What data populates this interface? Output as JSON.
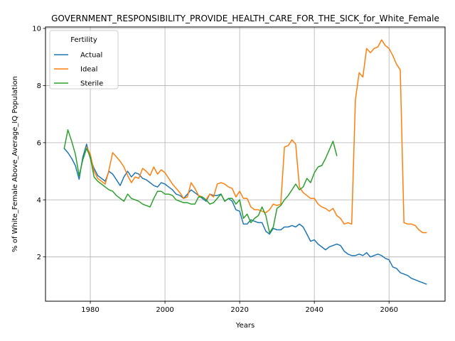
{
  "chart_data": {
    "type": "line",
    "title": "GOVERNMENT_RESPONSIBILITY_PROVIDE_HEALTH_CARE_FOR_THE_SICK_for_White_Female",
    "xlabel": "Years",
    "ylabel": "% of White_Female Above_Average_IQ Population",
    "xlim": [
      1968,
      2075
    ],
    "ylim": [
      0.45,
      10.05
    ],
    "xticks": [
      1980,
      2000,
      2020,
      2040,
      2060
    ],
    "yticks": [
      2,
      4,
      6,
      8,
      10
    ],
    "grid": true,
    "legend": {
      "title": "Fertility",
      "placement": "upper left"
    },
    "series": [
      {
        "name": "Actual",
        "color": "#1f77b4",
        "x": [
          1973,
          1974,
          1975,
          1976,
          1977,
          1978,
          1979,
          1980,
          1981,
          1982,
          1983,
          1984,
          1985,
          1986,
          1987,
          1988,
          1989,
          1990,
          1991,
          1992,
          1993,
          1994,
          1995,
          1996,
          1997,
          1998,
          1999,
          2000,
          2001,
          2002,
          2003,
          2004,
          2005,
          2006,
          2007,
          2008,
          2009,
          2010,
          2011,
          2012,
          2013,
          2014,
          2015,
          2016,
          2017,
          2018,
          2019,
          2020,
          2021,
          2022,
          2023,
          2024,
          2025,
          2026,
          2027,
          2028,
          2029,
          2030,
          2031,
          2032,
          2033,
          2034,
          2035,
          2036,
          2037,
          2038,
          2039,
          2040,
          2041,
          2042,
          2043,
          2044,
          2045,
          2046,
          2047,
          2048,
          2049,
          2050,
          2051,
          2052,
          2053,
          2054,
          2055,
          2056,
          2057,
          2058,
          2059,
          2060,
          2061,
          2062,
          2063,
          2064,
          2065,
          2066,
          2067,
          2068,
          2069,
          2070
        ],
        "values": [
          5.8,
          5.65,
          5.45,
          5.2,
          4.72,
          5.5,
          5.95,
          5.45,
          5.1,
          4.85,
          4.75,
          4.65,
          5.0,
          4.9,
          4.7,
          4.5,
          4.8,
          5.0,
          4.8,
          4.95,
          4.9,
          4.75,
          4.7,
          4.6,
          4.5,
          4.45,
          4.6,
          4.55,
          4.45,
          4.35,
          4.2,
          4.15,
          4.05,
          4.2,
          4.35,
          4.25,
          4.15,
          4.05,
          3.95,
          4.2,
          4.15,
          4.15,
          4.2,
          3.95,
          4.05,
          3.95,
          3.65,
          3.6,
          3.15,
          3.15,
          3.3,
          3.25,
          3.2,
          3.2,
          2.9,
          2.8,
          3.0,
          2.95,
          2.95,
          3.05,
          3.05,
          3.1,
          3.05,
          3.15,
          3.05,
          2.8,
          2.55,
          2.6,
          2.45,
          2.35,
          2.25,
          2.35,
          2.4,
          2.45,
          2.4,
          2.2,
          2.1,
          2.05,
          2.05,
          2.1,
          2.05,
          2.15,
          2.0,
          2.05,
          2.1,
          2.05,
          1.95,
          1.9,
          1.65,
          1.6,
          1.45,
          1.4,
          1.35,
          1.25,
          1.2,
          1.15,
          1.1,
          1.05
        ]
      },
      {
        "name": "Ideal",
        "color": "#ff7f0e",
        "x": [
          1979,
          1980,
          1981,
          1982,
          1983,
          1984,
          1985,
          1986,
          1987,
          1988,
          1989,
          1990,
          1991,
          1992,
          1993,
          1994,
          1995,
          1996,
          1997,
          1998,
          1999,
          2000,
          2001,
          2002,
          2003,
          2004,
          2005,
          2006,
          2007,
          2008,
          2009,
          2010,
          2011,
          2012,
          2013,
          2014,
          2015,
          2016,
          2017,
          2018,
          2019,
          2020,
          2021,
          2022,
          2023,
          2024,
          2025,
          2026,
          2027,
          2028,
          2029,
          2030,
          2031,
          2032,
          2033,
          2034,
          2035,
          2036,
          2037,
          2038,
          2039,
          2040,
          2041,
          2042,
          2043,
          2044,
          2045,
          2046,
          2047,
          2048,
          2049,
          2050,
          2051,
          2052,
          2053,
          2054,
          2055,
          2056,
          2057,
          2058,
          2059,
          2060,
          2061,
          2062,
          2063,
          2064,
          2065,
          2066,
          2067,
          2068,
          2069,
          2070
        ],
        "values": [
          5.85,
          5.6,
          5.0,
          4.75,
          4.65,
          4.55,
          5.05,
          5.65,
          5.5,
          5.35,
          5.15,
          4.85,
          4.6,
          4.8,
          4.75,
          5.1,
          5.0,
          4.85,
          5.15,
          4.9,
          5.05,
          4.95,
          4.75,
          4.55,
          4.4,
          4.25,
          4.05,
          4.1,
          4.6,
          4.4,
          4.15,
          4.1,
          4.0,
          4.2,
          4.1,
          4.55,
          4.6,
          4.55,
          4.45,
          4.4,
          4.1,
          4.3,
          4.05,
          4.05,
          3.75,
          3.65,
          3.65,
          3.6,
          3.55,
          3.65,
          3.85,
          3.8,
          3.85,
          5.85,
          5.9,
          6.1,
          5.95,
          4.45,
          4.25,
          4.15,
          4.05,
          4.05,
          3.85,
          3.75,
          3.7,
          3.6,
          3.7,
          3.45,
          3.35,
          3.15,
          3.2,
          3.15,
          7.5,
          8.45,
          8.3,
          9.3,
          9.15,
          9.3,
          9.35,
          9.6,
          9.4,
          9.3,
          9.05,
          8.75,
          8.55,
          3.2,
          3.15,
          3.15,
          3.1,
          2.95,
          2.85,
          2.85
        ]
      },
      {
        "name": "Sterile",
        "color": "#2ca02c",
        "x": [
          1973,
          1974,
          1975,
          1976,
          1977,
          1978,
          1979,
          1980,
          1981,
          1982,
          1983,
          1984,
          1985,
          1986,
          1987,
          1988,
          1989,
          1990,
          1991,
          1992,
          1993,
          1994,
          1995,
          1996,
          1997,
          1998,
          1999,
          2000,
          2001,
          2002,
          2003,
          2004,
          2005,
          2006,
          2007,
          2008,
          2009,
          2010,
          2011,
          2012,
          2013,
          2014,
          2015,
          2016,
          2017,
          2018,
          2019,
          2020,
          2021,
          2022,
          2023,
          2024,
          2025,
          2026,
          2027,
          2028,
          2029,
          2030,
          2031,
          2032,
          2033,
          2034,
          2035,
          2036,
          2037,
          2038,
          2039,
          2040,
          2041,
          2042,
          2043,
          2044,
          2045,
          2046
        ],
        "values": [
          5.8,
          6.45,
          6.05,
          5.6,
          4.85,
          5.4,
          5.8,
          5.5,
          4.8,
          4.65,
          4.55,
          4.45,
          4.35,
          4.3,
          4.15,
          4.05,
          3.95,
          4.2,
          4.05,
          4.0,
          3.95,
          3.85,
          3.8,
          3.75,
          4.05,
          4.3,
          4.3,
          4.2,
          4.2,
          4.15,
          4.0,
          3.95,
          3.9,
          3.9,
          3.85,
          3.85,
          4.1,
          4.1,
          4.0,
          3.85,
          3.9,
          4.05,
          4.2,
          3.95,
          4.05,
          4.05,
          3.85,
          4.0,
          3.35,
          3.5,
          3.2,
          3.35,
          3.45,
          3.75,
          3.45,
          2.85,
          3.05,
          3.7,
          3.8,
          4.0,
          4.15,
          4.35,
          4.55,
          4.35,
          4.45,
          4.75,
          4.6,
          4.95,
          5.15,
          5.2,
          5.45,
          5.75,
          6.05,
          5.55
        ]
      }
    ]
  }
}
